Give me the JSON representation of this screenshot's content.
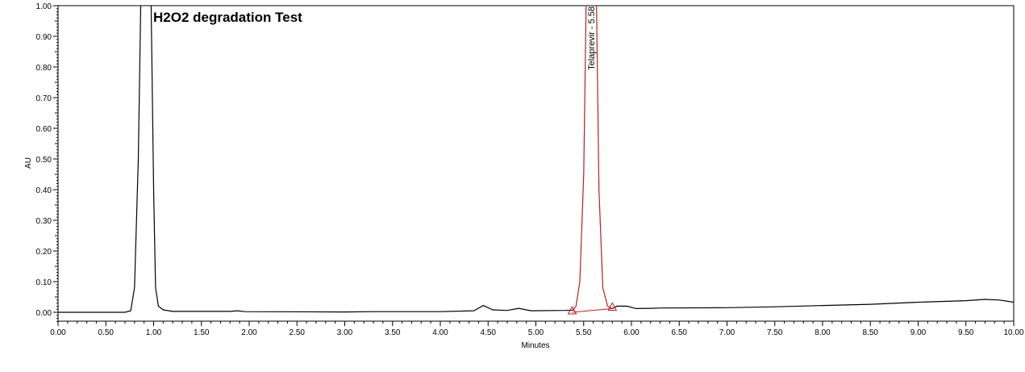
{
  "chart_data": {
    "type": "line",
    "title": "H2O2 degradation Test",
    "xlabel": "Minutes",
    "ylabel": "AU",
    "xlim": [
      0,
      10
    ],
    "ylim": [
      -0.03,
      1.0
    ],
    "xticks": [
      "0.00",
      "0.50",
      "1.00",
      "1.50",
      "2.00",
      "2.50",
      "3.00",
      "3.50",
      "4.00",
      "4.50",
      "5.00",
      "5.50",
      "6.00",
      "6.50",
      "7.00",
      "7.50",
      "8.00",
      "8.50",
      "9.00",
      "9.50",
      "10.00"
    ],
    "yticks": [
      "0.00",
      "0.10",
      "0.20",
      "0.30",
      "0.40",
      "0.50",
      "0.60",
      "0.70",
      "0.80",
      "0.90",
      "1.00"
    ],
    "grid": false,
    "colors": {
      "trace": "#000000",
      "peak": "#b22222"
    },
    "series": [
      {
        "points": [
          [
            0,
            0
          ],
          [
            0.7,
            0
          ],
          [
            0.76,
            0.005
          ],
          [
            0.8,
            0.08
          ],
          [
            0.84,
            0.5
          ],
          [
            0.87,
            1.1
          ],
          [
            0.97,
            1.1
          ],
          [
            1.0,
            0.4
          ],
          [
            1.02,
            0.08
          ],
          [
            1.05,
            0.02
          ],
          [
            1.1,
            0.008
          ],
          [
            1.2,
            0.003
          ],
          [
            1.8,
            0.003
          ],
          [
            1.88,
            0.005
          ],
          [
            1.95,
            0.002
          ],
          [
            3.0,
            0.001
          ],
          [
            3.3,
            0.002
          ],
          [
            4.0,
            0.002
          ],
          [
            4.35,
            0.005
          ],
          [
            4.45,
            0.022
          ],
          [
            4.55,
            0.008
          ],
          [
            4.7,
            0.006
          ],
          [
            4.82,
            0.013
          ],
          [
            4.95,
            0.005
          ],
          [
            5.3,
            0.006
          ],
          [
            5.4,
            0.007
          ]
        ]
      },
      {
        "points": [
          [
            5.8,
            0.012
          ],
          [
            5.85,
            0.02
          ],
          [
            5.95,
            0.02
          ],
          [
            6.05,
            0.012
          ],
          [
            6.2,
            0.013
          ],
          [
            6.3,
            0.014
          ],
          [
            7.0,
            0.015
          ],
          [
            7.5,
            0.018
          ],
          [
            8.0,
            0.022
          ],
          [
            8.5,
            0.026
          ],
          [
            9.0,
            0.033
          ],
          [
            9.5,
            0.038
          ],
          [
            9.7,
            0.042
          ],
          [
            9.85,
            0.04
          ],
          [
            10.0,
            0.033
          ]
        ]
      }
    ],
    "peak": {
      "label": "Telaprevir - 5.58",
      "retention_time": 5.58,
      "points": [
        [
          5.38,
          0.005
        ],
        [
          5.42,
          0.02
        ],
        [
          5.46,
          0.1
        ],
        [
          5.5,
          0.45
        ],
        [
          5.53,
          1.1
        ],
        [
          5.63,
          1.1
        ],
        [
          5.66,
          0.4
        ],
        [
          5.7,
          0.08
        ],
        [
          5.75,
          0.02
        ],
        [
          5.8,
          0.012
        ]
      ],
      "baseline": [
        [
          5.38,
          0.0
        ],
        [
          5.8,
          0.012
        ]
      ]
    }
  }
}
